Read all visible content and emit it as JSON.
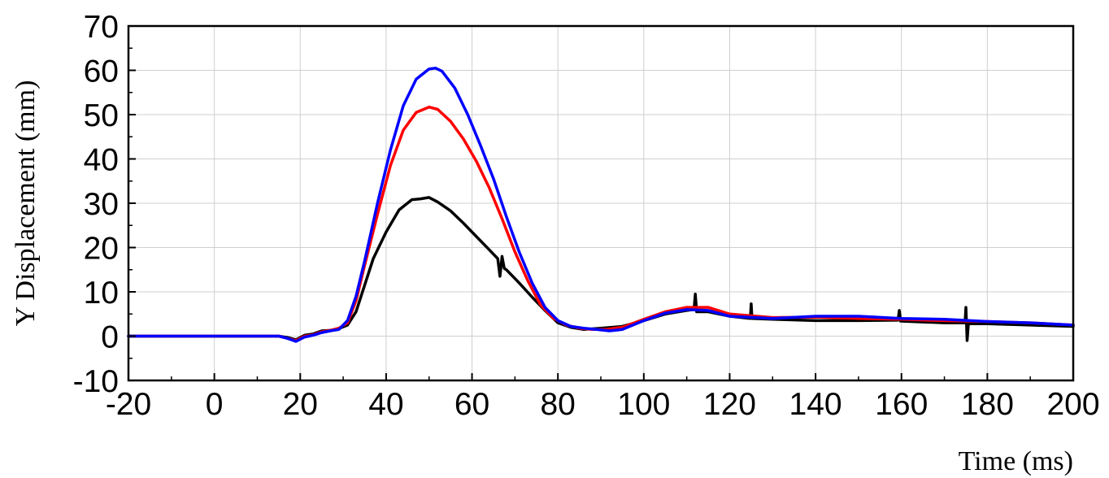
{
  "chart_data": {
    "type": "line",
    "title": "",
    "xlabel": "Time (ms)",
    "ylabel": "Y Displacement (mm)",
    "xlim": [
      -20,
      200
    ],
    "ylim": [
      -10,
      70
    ],
    "x_ticks": [
      -20,
      0,
      20,
      40,
      60,
      80,
      100,
      120,
      140,
      160,
      180,
      200
    ],
    "y_ticks": [
      -10,
      0,
      10,
      20,
      30,
      40,
      50,
      60,
      70
    ],
    "grid": true,
    "legend": "none",
    "series": [
      {
        "color": "#000000",
        "x": [
          -20,
          0,
          15,
          17,
          19,
          21,
          23,
          25,
          27,
          29,
          31,
          33,
          35,
          37,
          40,
          43,
          46,
          48,
          50,
          52,
          55,
          58,
          61,
          64,
          66,
          66.5,
          67,
          67.5,
          68,
          71,
          74,
          77,
          80,
          83,
          86,
          90,
          95,
          100,
          105,
          110,
          111.7,
          112,
          112.3,
          115,
          120,
          124.8,
          125,
          125.2,
          130,
          140,
          150,
          159.2,
          159.5,
          159.8,
          165,
          170,
          174.8,
          175,
          175.3,
          175.6,
          180,
          190,
          200
        ],
        "y": [
          0,
          0,
          0,
          -0.3,
          -0.8,
          0.2,
          0.5,
          1.2,
          1.3,
          1.7,
          2.5,
          5.5,
          11.5,
          17.5,
          23.5,
          28.5,
          30.8,
          31.0,
          31.3,
          30.3,
          28.3,
          25.5,
          22.5,
          19.5,
          17.5,
          13.5,
          18.0,
          15.3,
          15.0,
          12.0,
          8.8,
          5.8,
          3.0,
          2.0,
          1.5,
          1.8,
          2.2,
          3.5,
          5.0,
          5.8,
          6.0,
          9.5,
          5.5,
          5.5,
          4.5,
          4.0,
          7.3,
          4.0,
          3.8,
          3.5,
          3.5,
          3.6,
          5.8,
          3.4,
          3.2,
          3.0,
          3.0,
          6.5,
          -1.0,
          2.8,
          2.8,
          2.5,
          2.2
        ]
      },
      {
        "color": "#ff0000",
        "x": [
          -20,
          0,
          15,
          17,
          19,
          21,
          23,
          25,
          27,
          29,
          31,
          33,
          35,
          38,
          41,
          44,
          47,
          50,
          52,
          55,
          58,
          61,
          64,
          67,
          70,
          73,
          76,
          79,
          82,
          85,
          88,
          91,
          95,
          100,
          105,
          110,
          115,
          120,
          130,
          140,
          150,
          160,
          170,
          180,
          190,
          200
        ],
        "y": [
          0,
          0,
          0,
          -0.5,
          -1.0,
          0,
          0.3,
          1.0,
          1.3,
          1.8,
          3.0,
          8.0,
          16.0,
          27.5,
          38.5,
          46.5,
          50.5,
          51.7,
          51.2,
          48.5,
          44.5,
          39.5,
          33.5,
          26.5,
          19.0,
          12.5,
          7.0,
          4.0,
          2.5,
          1.8,
          1.5,
          1.5,
          2.0,
          3.8,
          5.5,
          6.5,
          6.5,
          5.0,
          4.2,
          4.3,
          4.0,
          3.8,
          3.5,
          3.3,
          3.0,
          2.5
        ]
      },
      {
        "color": "#0000ff",
        "x": [
          -20,
          0,
          15,
          17,
          19,
          21,
          23,
          25,
          27,
          29,
          31,
          33,
          35,
          38,
          41,
          44,
          47,
          50,
          51.5,
          53,
          56,
          59,
          62,
          65,
          68,
          71,
          74,
          77,
          80,
          83,
          86,
          89,
          92,
          95,
          100,
          105,
          110,
          115,
          120,
          130,
          140,
          150,
          160,
          170,
          180,
          190,
          200
        ],
        "y": [
          0,
          0,
          0,
          -0.5,
          -1.2,
          -0.2,
          0.2,
          0.8,
          1.2,
          1.5,
          3.5,
          9.0,
          17.0,
          30.0,
          42.0,
          52.0,
          58.0,
          60.3,
          60.5,
          59.8,
          56.0,
          50.0,
          43.0,
          35.5,
          27.0,
          19.0,
          12.0,
          6.5,
          3.5,
          2.2,
          1.8,
          1.5,
          1.2,
          1.5,
          3.5,
          5.2,
          6.0,
          5.8,
          4.5,
          4.0,
          4.5,
          4.5,
          4.0,
          3.8,
          3.3,
          3.0,
          2.5
        ]
      }
    ]
  }
}
